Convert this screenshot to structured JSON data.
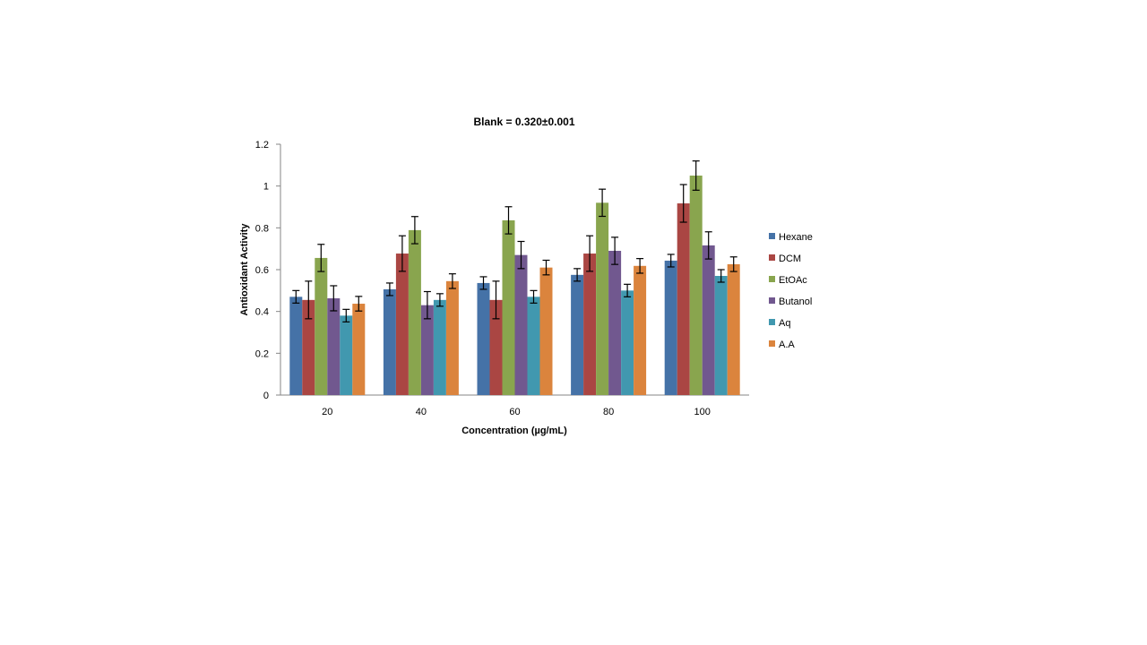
{
  "chart_data": {
    "type": "bar",
    "title": "Blank = 0.320±0.001",
    "xlabel": "Concentration (µg/mL)",
    "ylabel": "Antioxidant Activity",
    "ylim": [
      0,
      1.2
    ],
    "yticks": [
      "0",
      "0.2",
      "0.4",
      "0.6",
      "0.8",
      "1",
      "1.2"
    ],
    "grid": false,
    "legend_position": "right",
    "categories": [
      "20",
      "40",
      "60",
      "80",
      "100"
    ],
    "series": [
      {
        "name": "Hexane",
        "color": "#4572A7",
        "values": [
          0.47,
          0.506,
          0.536,
          0.575,
          0.643
        ],
        "errors": [
          0.03,
          0.03,
          0.03,
          0.03,
          0.03
        ]
      },
      {
        "name": "DCM",
        "color": "#AA4643",
        "values": [
          0.455,
          0.677,
          0.455,
          0.677,
          0.917
        ],
        "errors": [
          0.09,
          0.085,
          0.09,
          0.085,
          0.09
        ]
      },
      {
        "name": "EtOAc",
        "color": "#89A54E",
        "values": [
          0.656,
          0.789,
          0.836,
          0.92,
          1.05
        ],
        "errors": [
          0.065,
          0.065,
          0.065,
          0.065,
          0.07
        ]
      },
      {
        "name": "Butanol",
        "color": "#71588F",
        "values": [
          0.463,
          0.43,
          0.67,
          0.69,
          0.716
        ],
        "errors": [
          0.06,
          0.065,
          0.065,
          0.065,
          0.065
        ]
      },
      {
        "name": "Aq",
        "color": "#4198AF",
        "values": [
          0.38,
          0.455,
          0.47,
          0.5,
          0.57
        ],
        "errors": [
          0.03,
          0.03,
          0.03,
          0.03,
          0.03
        ]
      },
      {
        "name": "A.A",
        "color": "#DB843D",
        "values": [
          0.437,
          0.545,
          0.61,
          0.618,
          0.626
        ],
        "errors": [
          0.035,
          0.035,
          0.035,
          0.035,
          0.035
        ]
      }
    ]
  }
}
